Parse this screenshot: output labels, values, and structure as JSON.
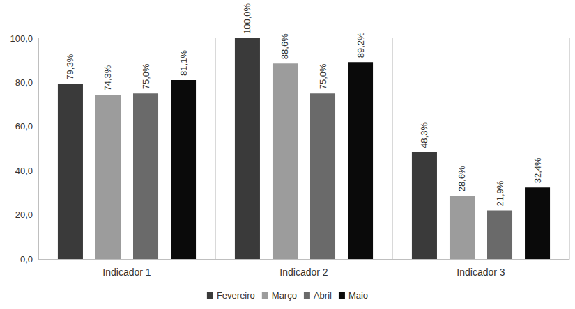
{
  "chart_data": {
    "type": "bar",
    "categories": [
      "Indicador 1",
      "Indicador 2",
      "Indicador 3"
    ],
    "series": [
      {
        "name": "Fevereiro",
        "color": "#3a3a3a",
        "values": [
          79.3,
          100.0,
          48.3
        ],
        "value_labels": [
          "79,3%",
          "100,0%",
          "48,3%"
        ]
      },
      {
        "name": "Março",
        "color": "#9c9c9c",
        "values": [
          74.3,
          88.6,
          28.6
        ],
        "value_labels": [
          "74,3%",
          "88,6%",
          "28,6%"
        ]
      },
      {
        "name": "Abril",
        "color": "#6a6a6a",
        "values": [
          75.0,
          75.0,
          21.9
        ],
        "value_labels": [
          "75,0%",
          "75,0%",
          "21,9%"
        ]
      },
      {
        "name": "Maio",
        "color": "#0a0a0a",
        "values": [
          81.1,
          89.2,
          32.4
        ],
        "value_labels": [
          "81,1%",
          "89,2%",
          "32,4%"
        ]
      }
    ],
    "ylim": [
      0,
      100
    ],
    "yticks": [
      {
        "value": 0,
        "label": "0,0"
      },
      {
        "value": 20,
        "label": "20,0"
      },
      {
        "value": 40,
        "label": "40,0"
      },
      {
        "value": 60,
        "label": "60,0"
      },
      {
        "value": 80,
        "label": "80,0"
      },
      {
        "value": 100,
        "label": "100,0"
      }
    ],
    "grid": false,
    "legend": "bottom",
    "data_labels": true
  }
}
